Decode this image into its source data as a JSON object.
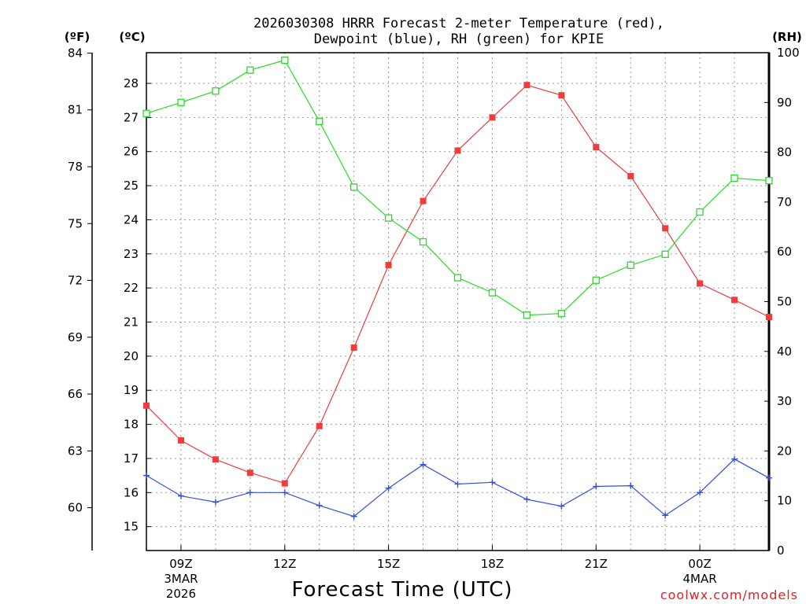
{
  "chart_data": {
    "type": "line",
    "title_line1": "2026030308 HRRR Forecast 2-meter Temperature (red),",
    "title_line2": "Dewpoint (blue), RH (green) for KPIE",
    "xlabel": "Forecast Time (UTC)",
    "credit": "coolwx.com/models",
    "credit_color": "#e0202a",
    "x_hours": [
      8,
      9,
      10,
      11,
      12,
      13,
      14,
      15,
      16,
      17,
      18,
      19,
      20,
      21,
      22,
      23,
      24,
      25,
      26
    ],
    "xlim": [
      8,
      26
    ],
    "x_ticks": [
      {
        "hour": 9,
        "label": "09Z",
        "date1": "3MAR",
        "date2": "2026"
      },
      {
        "hour": 12,
        "label": "12Z"
      },
      {
        "hour": 15,
        "label": "15Z"
      },
      {
        "hour": 18,
        "label": "18Z"
      },
      {
        "hour": 21,
        "label": "21Z"
      },
      {
        "hour": 24,
        "label": "00Z",
        "date1": "4MAR"
      }
    ],
    "celsius_axis": {
      "unit_label": "(ºC)",
      "ylim": [
        14.3,
        28.9
      ],
      "ticks": [
        "15",
        "16",
        "17",
        "18",
        "19",
        "20",
        "21",
        "22",
        "23",
        "24",
        "25",
        "26",
        "27",
        "28"
      ]
    },
    "fahrenheit_axis": {
      "unit_label": "(ºF)",
      "ticks": [
        "60",
        "63",
        "66",
        "69",
        "72",
        "75",
        "78",
        "81",
        "84"
      ]
    },
    "rh_axis": {
      "unit_label": "(RH)",
      "ylim": [
        0,
        100
      ],
      "ticks": [
        "0",
        "10",
        "20",
        "30",
        "40",
        "50",
        "60",
        "70",
        "80",
        "90",
        "100"
      ]
    },
    "series": [
      {
        "name": "Temperature",
        "color": "#f03c3c",
        "marker": "filled-square",
        "axis": "celsius",
        "values": [
          18.55,
          17.53,
          16.97,
          16.58,
          16.27,
          17.95,
          20.25,
          22.67,
          24.55,
          26.03,
          27.0,
          27.95,
          27.65,
          26.13,
          25.28,
          23.75,
          22.13,
          21.65,
          21.15
        ]
      },
      {
        "name": "Dewpoint",
        "color": "#3050e0",
        "marker": "plus",
        "axis": "celsius",
        "values": [
          16.5,
          15.9,
          15.72,
          16.0,
          16.0,
          15.62,
          15.3,
          16.13,
          16.82,
          16.25,
          16.3,
          15.8,
          15.6,
          16.18,
          16.2,
          15.33,
          16.0,
          16.98,
          16.43
        ]
      },
      {
        "name": "RH",
        "color": "#22e022",
        "marker": "open-square",
        "axis": "rh",
        "values": [
          87.8,
          90.0,
          92.3,
          96.5,
          98.5,
          86.2,
          73.0,
          66.8,
          62.0,
          54.8,
          51.8,
          47.3,
          47.6,
          54.3,
          57.3,
          59.5,
          68.0,
          74.8,
          74.3
        ]
      }
    ]
  }
}
